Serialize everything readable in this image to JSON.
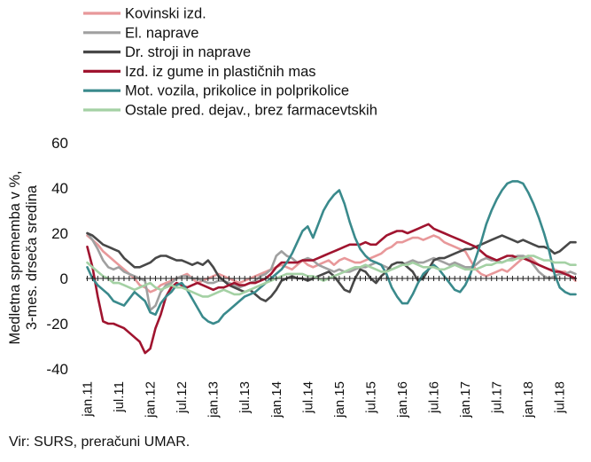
{
  "chart_data": {
    "type": "line",
    "title": "",
    "ylabel": [
      "Medletna sprememba v %,",
      "3-mes. drseča sredina"
    ],
    "xlabel": "",
    "ylim": [
      -40,
      60
    ],
    "yticks": [
      -40,
      -20,
      0,
      20,
      40,
      60
    ],
    "grid": false,
    "legend_position": "top",
    "x": [
      "2011-01",
      "2011-02",
      "2011-03",
      "2011-04",
      "2011-05",
      "2011-06",
      "2011-07",
      "2011-08",
      "2011-09",
      "2011-10",
      "2011-11",
      "2011-12",
      "2012-01",
      "2012-02",
      "2012-03",
      "2012-04",
      "2012-05",
      "2012-06",
      "2012-07",
      "2012-08",
      "2012-09",
      "2012-10",
      "2012-11",
      "2012-12",
      "2013-01",
      "2013-02",
      "2013-03",
      "2013-04",
      "2013-05",
      "2013-06",
      "2013-07",
      "2013-08",
      "2013-09",
      "2013-10",
      "2013-11",
      "2013-12",
      "2014-01",
      "2014-02",
      "2014-03",
      "2014-04",
      "2014-05",
      "2014-06",
      "2014-07",
      "2014-08",
      "2014-09",
      "2014-10",
      "2014-11",
      "2014-12",
      "2015-01",
      "2015-02",
      "2015-03",
      "2015-04",
      "2015-05",
      "2015-06",
      "2015-07",
      "2015-08",
      "2015-09",
      "2015-10",
      "2015-11",
      "2015-12",
      "2016-01",
      "2016-02",
      "2016-03",
      "2016-04",
      "2016-05",
      "2016-06",
      "2016-07",
      "2016-08",
      "2016-09",
      "2016-10",
      "2016-11",
      "2016-12",
      "2017-01",
      "2017-02",
      "2017-03",
      "2017-04",
      "2017-05",
      "2017-06",
      "2017-07",
      "2017-08",
      "2017-09",
      "2017-10",
      "2017-11",
      "2017-12",
      "2018-01",
      "2018-02",
      "2018-03",
      "2018-04",
      "2018-05",
      "2018-06",
      "2018-07",
      "2018-08",
      "2018-09",
      "2018-10"
    ],
    "xtick_labels": [
      "jan.11",
      "jul.11",
      "jan.12",
      "jul.12",
      "jan.13",
      "jul.13",
      "jan.14",
      "jul.14",
      "jan.15",
      "jul.15",
      "jan.16",
      "jul.16",
      "jan.17",
      "jul.17",
      "jan.18",
      "jul.18"
    ],
    "series": [
      {
        "name": "Kovinski izd.",
        "color": "#e8989a",
        "values": [
          19,
          17,
          15,
          12,
          10,
          8,
          6,
          4,
          2,
          0,
          -3,
          -4,
          -6,
          -5,
          -3,
          -2,
          -1,
          0,
          1,
          2,
          0,
          -2,
          -1,
          0,
          1,
          2,
          1,
          0,
          -1,
          -2,
          -1,
          0,
          1,
          2,
          3,
          4,
          5,
          6,
          5,
          4,
          6,
          8,
          6,
          5,
          6,
          7,
          8,
          6,
          8,
          9,
          8,
          7,
          7,
          8,
          9,
          10,
          11,
          13,
          14,
          16,
          16,
          17,
          18,
          18,
          17,
          18,
          19,
          18,
          16,
          15,
          14,
          13,
          12,
          8,
          4,
          2,
          1,
          2,
          3,
          4,
          3,
          5,
          7,
          9,
          10,
          8,
          6,
          5,
          4,
          4,
          3,
          3,
          1,
          -1
        ]
      },
      {
        "name": "El. naprave",
        "color": "#a0a0a0",
        "values": [
          20,
          17,
          13,
          8,
          5,
          4,
          5,
          3,
          2,
          1,
          0,
          -1,
          -14,
          -12,
          -6,
          -3,
          -2,
          0,
          1,
          1,
          0,
          0,
          -1,
          -2,
          -2,
          -1,
          -1,
          -2,
          -3,
          -4,
          -3,
          -2,
          -1,
          1,
          2,
          4,
          10,
          12,
          10,
          9,
          7,
          8,
          9,
          8,
          6,
          5,
          4,
          3,
          4,
          3,
          3,
          4,
          5,
          5,
          6,
          7,
          6,
          5,
          4,
          5,
          6,
          7,
          8,
          7,
          7,
          8,
          9,
          8,
          7,
          6,
          7,
          6,
          5,
          5,
          6,
          8,
          9,
          8,
          8,
          7,
          8,
          9,
          10,
          10,
          9,
          6,
          3,
          1,
          0,
          1,
          2,
          2,
          3,
          2
        ]
      },
      {
        "name": "Dr. stroji in naprave",
        "color": "#484848",
        "values": [
          20,
          19,
          17,
          15,
          14,
          13,
          12,
          9,
          7,
          5,
          5,
          6,
          7,
          9,
          10,
          10,
          9,
          8,
          8,
          7,
          6,
          7,
          6,
          8,
          5,
          1,
          -1,
          -3,
          -4,
          -5,
          -6,
          -5,
          -7,
          -9,
          -10,
          -8,
          -5,
          -1,
          0,
          1,
          0,
          0,
          -1,
          0,
          1,
          2,
          3,
          1,
          -2,
          -5,
          -6,
          0,
          4,
          3,
          0,
          -2,
          1,
          3,
          6,
          7,
          7,
          5,
          3,
          -1,
          0,
          4,
          8,
          9,
          9,
          10,
          11,
          12,
          13,
          13,
          14,
          15,
          16,
          17,
          18,
          19,
          18,
          17,
          16,
          17,
          16,
          15,
          14,
          14,
          13,
          11,
          12,
          14,
          16,
          16
        ]
      },
      {
        "name": "Izd. iz gume in plastičnih mas",
        "color": "#a0142f",
        "values": [
          14,
          5,
          -8,
          -19,
          -20,
          -20,
          -21,
          -22,
          -24,
          -26,
          -28,
          -33,
          -31,
          -22,
          -16,
          -8,
          -4,
          -2,
          -3,
          -4,
          -3,
          -2,
          -3,
          -4,
          -5,
          -4,
          -4,
          -3,
          -2,
          -3,
          -3,
          -2,
          -2,
          -1,
          0,
          2,
          5,
          7,
          7,
          7,
          7,
          8,
          8,
          8,
          9,
          10,
          11,
          12,
          13,
          14,
          15,
          15,
          15,
          16,
          15,
          15,
          17,
          19,
          20,
          21,
          21,
          20,
          21,
          22,
          23,
          24,
          22,
          21,
          20,
          19,
          18,
          17,
          16,
          15,
          14,
          12,
          10,
          9,
          8,
          9,
          10,
          10,
          9,
          9,
          8,
          7,
          6,
          5,
          4,
          3,
          3,
          2,
          1,
          0
        ]
      },
      {
        "name": "Mot. vozila, prikolice in polprikolice",
        "color": "#3a8a8c",
        "values": [
          5,
          0,
          -3,
          -5,
          -7,
          -10,
          -11,
          -12,
          -9,
          -6,
          -8,
          -10,
          -15,
          -16,
          -11,
          -8,
          -6,
          -3,
          -2,
          -5,
          -9,
          -13,
          -17,
          -19,
          -20,
          -19,
          -16,
          -14,
          -12,
          -10,
          -8,
          -7,
          -6,
          -4,
          -2,
          0,
          2,
          4,
          7,
          11,
          16,
          21,
          23,
          18,
          24,
          30,
          34,
          37,
          39,
          33,
          25,
          18,
          13,
          10,
          8,
          7,
          6,
          2,
          -4,
          -8,
          -11,
          -11,
          -7,
          -2,
          2,
          4,
          6,
          4,
          1,
          -2,
          -5,
          -6,
          -3,
          2,
          9,
          16,
          24,
          30,
          35,
          39,
          42,
          43,
          43,
          42,
          38,
          33,
          27,
          20,
          12,
          2,
          -4,
          -6,
          -7,
          -7
        ]
      },
      {
        "name": "Ostale pred. dejav., brez farmacevtskih",
        "color": "#a4d1a4",
        "values": [
          7,
          5,
          3,
          1,
          0,
          -2,
          -2,
          -3,
          -4,
          -5,
          -4,
          -3,
          -2,
          -4,
          -5,
          -4,
          -3,
          -4,
          -4,
          -5,
          -6,
          -7,
          -8,
          -8,
          -7,
          -6,
          -5,
          -6,
          -7,
          -7,
          -6,
          -5,
          -4,
          -3,
          -2,
          -1,
          0,
          1,
          2,
          2,
          2,
          2,
          1,
          1,
          0,
          -1,
          0,
          1,
          2,
          3,
          4,
          5,
          5,
          6,
          5,
          4,
          3,
          3,
          4,
          5,
          6,
          6,
          7,
          6,
          5,
          5,
          5,
          4,
          4,
          5,
          6,
          5,
          4,
          4,
          4,
          5,
          6,
          6,
          7,
          7,
          8,
          8,
          9,
          9,
          10,
          10,
          9,
          8,
          8,
          7,
          7,
          7,
          6,
          6
        ]
      }
    ],
    "source": "Vir: SURS, preračuni UMAR."
  }
}
